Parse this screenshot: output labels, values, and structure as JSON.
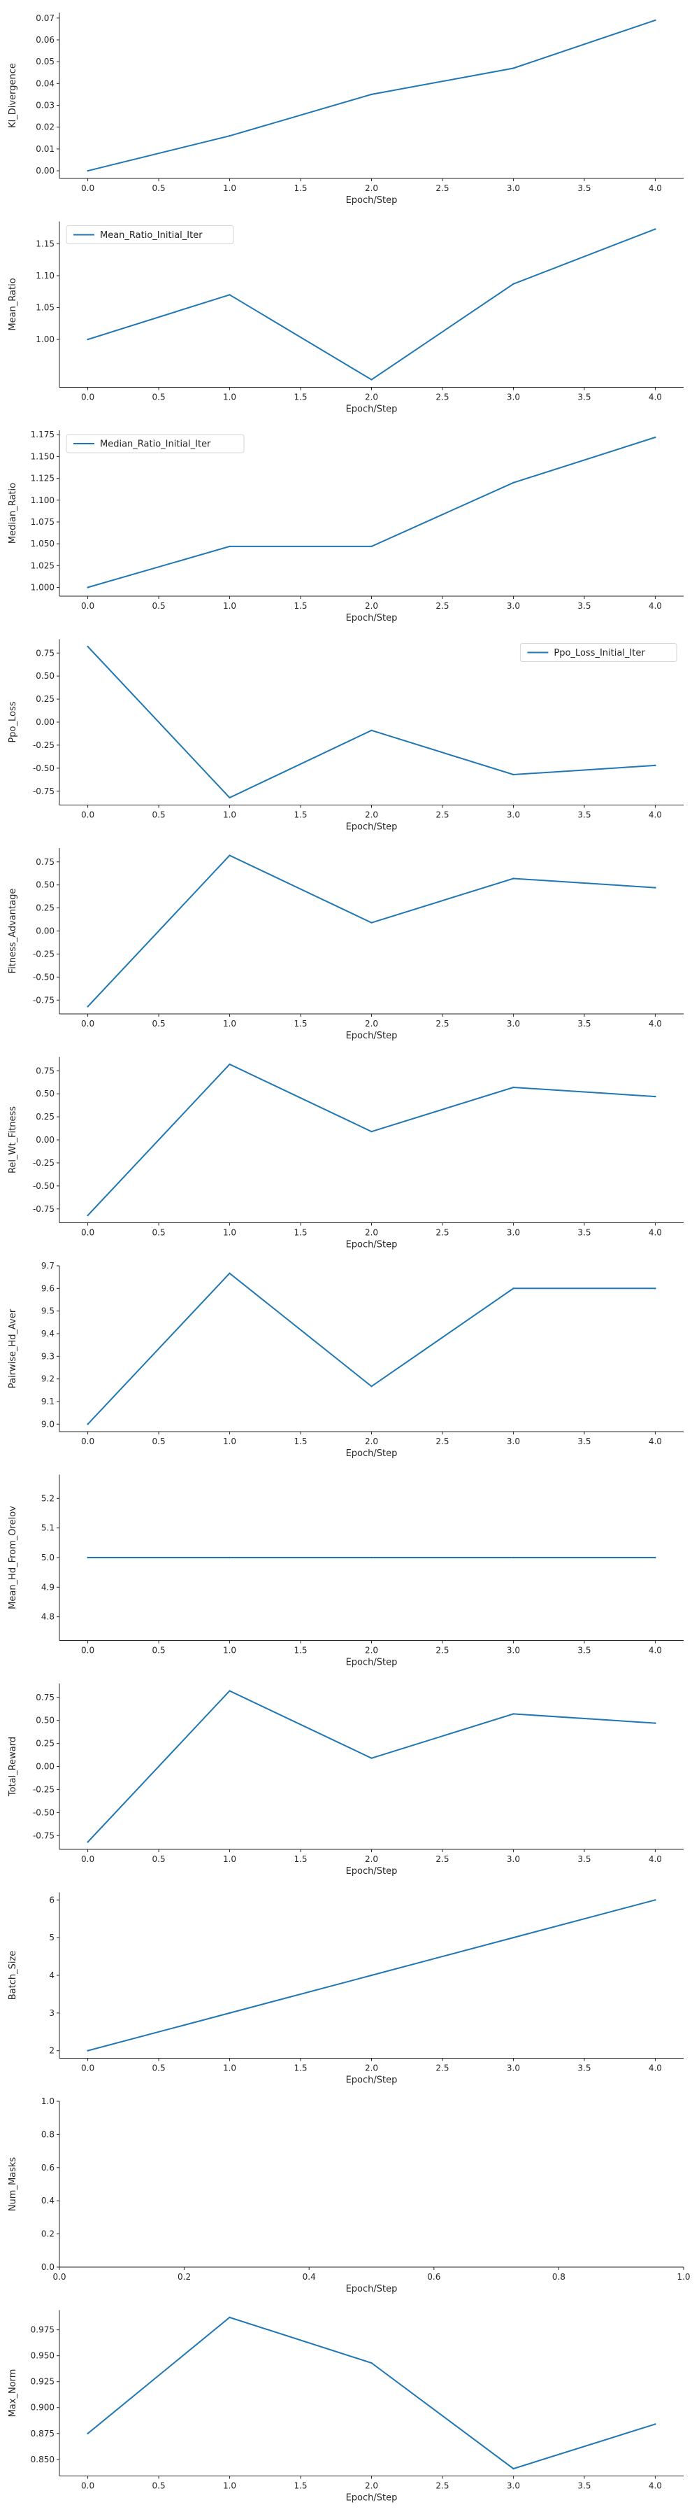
{
  "style": {
    "line_color": "#1f77b4",
    "axis_color": "#262626"
  },
  "chart_data": [
    {
      "type": "line",
      "xlabel": "Epoch/Step",
      "ylabel": "Kl_Divergence",
      "xlim": [
        -0.2,
        4.2
      ],
      "ylim": [
        -0.0035,
        0.0725
      ],
      "xticks": [
        "0.0",
        "0.5",
        "1.0",
        "1.5",
        "2.0",
        "2.5",
        "3.0",
        "3.5",
        "4.0"
      ],
      "yticks": [
        "0.00",
        "0.01",
        "0.02",
        "0.03",
        "0.04",
        "0.05",
        "0.06",
        "0.07"
      ],
      "legend": null,
      "series": [
        {
          "x": [
            0,
            1,
            2,
            3,
            4
          ],
          "values": [
            0.0,
            0.016,
            0.035,
            0.047,
            0.069
          ]
        }
      ]
    },
    {
      "type": "line",
      "xlabel": "Epoch/Step",
      "ylabel": "Mean_Ratio",
      "xlim": [
        -0.2,
        4.2
      ],
      "ylim": [
        0.925,
        1.185
      ],
      "xticks": [
        "0.0",
        "0.5",
        "1.0",
        "1.5",
        "2.0",
        "2.5",
        "3.0",
        "3.5",
        "4.0"
      ],
      "yticks": [
        "1.00",
        "1.05",
        "1.10",
        "1.15"
      ],
      "legend": {
        "position": "upper-left",
        "entries": [
          "Mean_Ratio_Initial_Iter"
        ]
      },
      "series": [
        {
          "x": [
            0,
            1,
            2,
            3,
            4
          ],
          "values": [
            1.0,
            1.07,
            0.937,
            1.087,
            1.173
          ]
        }
      ]
    },
    {
      "type": "line",
      "xlabel": "Epoch/Step",
      "ylabel": "Median_Ratio",
      "xlim": [
        -0.2,
        4.2
      ],
      "ylim": [
        0.99,
        1.18
      ],
      "xticks": [
        "0.0",
        "0.5",
        "1.0",
        "1.5",
        "2.0",
        "2.5",
        "3.0",
        "3.5",
        "4.0"
      ],
      "yticks": [
        "1.000",
        "1.025",
        "1.050",
        "1.075",
        "1.100",
        "1.125",
        "1.150",
        "1.175"
      ],
      "legend": {
        "position": "upper-left",
        "entries": [
          "Median_Ratio_Initial_Iter"
        ]
      },
      "series": [
        {
          "x": [
            0,
            1,
            2,
            3,
            4
          ],
          "values": [
            1.0,
            1.047,
            1.047,
            1.12,
            1.172
          ]
        }
      ]
    },
    {
      "type": "line",
      "xlabel": "Epoch/Step",
      "ylabel": "Ppo_Loss",
      "xlim": [
        -0.2,
        4.2
      ],
      "ylim": [
        -0.9,
        0.9
      ],
      "xticks": [
        "0.0",
        "0.5",
        "1.0",
        "1.5",
        "2.0",
        "2.5",
        "3.0",
        "3.5",
        "4.0"
      ],
      "yticks": [
        "-0.75",
        "-0.50",
        "-0.25",
        "0.00",
        "0.25",
        "0.50",
        "0.75"
      ],
      "legend": {
        "position": "upper-right",
        "entries": [
          "Ppo_Loss_Initial_Iter"
        ]
      },
      "series": [
        {
          "x": [
            0,
            1,
            2,
            3,
            4
          ],
          "values": [
            0.82,
            -0.82,
            -0.09,
            -0.57,
            -0.47
          ]
        }
      ]
    },
    {
      "type": "line",
      "xlabel": "Epoch/Step",
      "ylabel": "Fitness_Advantage",
      "xlim": [
        -0.2,
        4.2
      ],
      "ylim": [
        -0.9,
        0.9
      ],
      "xticks": [
        "0.0",
        "0.5",
        "1.0",
        "1.5",
        "2.0",
        "2.5",
        "3.0",
        "3.5",
        "4.0"
      ],
      "yticks": [
        "-0.75",
        "-0.50",
        "-0.25",
        "0.00",
        "0.25",
        "0.50",
        "0.75"
      ],
      "legend": null,
      "series": [
        {
          "x": [
            0,
            1,
            2,
            3,
            4
          ],
          "values": [
            -0.82,
            0.82,
            0.09,
            0.57,
            0.47
          ]
        }
      ]
    },
    {
      "type": "line",
      "xlabel": "Epoch/Step",
      "ylabel": "Rel_Wt_Fitness",
      "xlim": [
        -0.2,
        4.2
      ],
      "ylim": [
        -0.9,
        0.9
      ],
      "xticks": [
        "0.0",
        "0.5",
        "1.0",
        "1.5",
        "2.0",
        "2.5",
        "3.0",
        "3.5",
        "4.0"
      ],
      "yticks": [
        "-0.75",
        "-0.50",
        "-0.25",
        "0.00",
        "0.25",
        "0.50",
        "0.75"
      ],
      "legend": null,
      "series": [
        {
          "x": [
            0,
            1,
            2,
            3,
            4
          ],
          "values": [
            -0.82,
            0.82,
            0.09,
            0.57,
            0.47
          ]
        }
      ]
    },
    {
      "type": "line",
      "xlabel": "Epoch/Step",
      "ylabel": "Pairwise_Hd_Aver",
      "xlim": [
        -0.2,
        4.2
      ],
      "ylim": [
        8.967,
        9.7
      ],
      "xticks": [
        "0.0",
        "0.5",
        "1.0",
        "1.5",
        "2.0",
        "2.5",
        "3.0",
        "3.5",
        "4.0"
      ],
      "yticks": [
        "9.0",
        "9.1",
        "9.2",
        "9.3",
        "9.4",
        "9.5",
        "9.6",
        "9.7"
      ],
      "legend": null,
      "series": [
        {
          "x": [
            0,
            1,
            2,
            3,
            4
          ],
          "values": [
            9.0,
            9.667,
            9.167,
            9.6,
            9.6
          ]
        }
      ]
    },
    {
      "type": "line",
      "xlabel": "Epoch/Step",
      "ylabel": "Mean_Hd_From_Orelov",
      "xlim": [
        -0.2,
        4.2
      ],
      "ylim": [
        4.72,
        5.28
      ],
      "xticks": [
        "0.0",
        "0.5",
        "1.0",
        "1.5",
        "2.0",
        "2.5",
        "3.0",
        "3.5",
        "4.0"
      ],
      "yticks": [
        "4.8",
        "4.9",
        "5.0",
        "5.1",
        "5.2"
      ],
      "legend": null,
      "series": [
        {
          "x": [
            0,
            1,
            2,
            3,
            4
          ],
          "values": [
            5.0,
            5.0,
            5.0,
            5.0,
            5.0
          ]
        }
      ]
    },
    {
      "type": "line",
      "xlabel": "Epoch/Step",
      "ylabel": "Total_Reward",
      "xlim": [
        -0.2,
        4.2
      ],
      "ylim": [
        -0.9,
        0.9
      ],
      "xticks": [
        "0.0",
        "0.5",
        "1.0",
        "1.5",
        "2.0",
        "2.5",
        "3.0",
        "3.5",
        "4.0"
      ],
      "yticks": [
        "-0.75",
        "-0.50",
        "-0.25",
        "0.00",
        "0.25",
        "0.50",
        "0.75"
      ],
      "legend": null,
      "series": [
        {
          "x": [
            0,
            1,
            2,
            3,
            4
          ],
          "values": [
            -0.82,
            0.82,
            0.09,
            0.57,
            0.47
          ]
        }
      ]
    },
    {
      "type": "line",
      "xlabel": "Epoch/Step",
      "ylabel": "Batch_Size",
      "xlim": [
        -0.2,
        4.2
      ],
      "ylim": [
        1.8,
        6.2
      ],
      "xticks": [
        "0.0",
        "0.5",
        "1.0",
        "1.5",
        "2.0",
        "2.5",
        "3.0",
        "3.5",
        "4.0"
      ],
      "yticks": [
        "2",
        "3",
        "4",
        "5",
        "6"
      ],
      "legend": null,
      "series": [
        {
          "x": [
            0,
            1,
            2,
            3,
            4
          ],
          "values": [
            2,
            3,
            4,
            5,
            6
          ]
        }
      ]
    },
    {
      "type": "line",
      "xlabel": "Epoch/Step",
      "ylabel": "Num_Masks",
      "xlim": [
        0,
        1
      ],
      "ylim": [
        0,
        1
      ],
      "xticks": [
        "0.0",
        "0.2",
        "0.4",
        "0.6",
        "0.8",
        "1.0"
      ],
      "yticks": [
        "0.0",
        "0.2",
        "0.4",
        "0.6",
        "0.8",
        "1.0"
      ],
      "legend": null,
      "series": []
    },
    {
      "type": "line",
      "xlabel": "Epoch/Step",
      "ylabel": "Max_Norm",
      "xlim": [
        -0.2,
        4.2
      ],
      "ylim": [
        0.834,
        0.994
      ],
      "xticks": [
        "0.0",
        "0.5",
        "1.0",
        "1.5",
        "2.0",
        "2.5",
        "3.0",
        "3.5",
        "4.0"
      ],
      "yticks": [
        "0.850",
        "0.875",
        "0.900",
        "0.925",
        "0.950",
        "0.975"
      ],
      "legend": null,
      "series": [
        {
          "x": [
            0,
            1,
            2,
            3,
            4
          ],
          "values": [
            0.875,
            0.987,
            0.943,
            0.841,
            0.884
          ]
        }
      ]
    }
  ]
}
